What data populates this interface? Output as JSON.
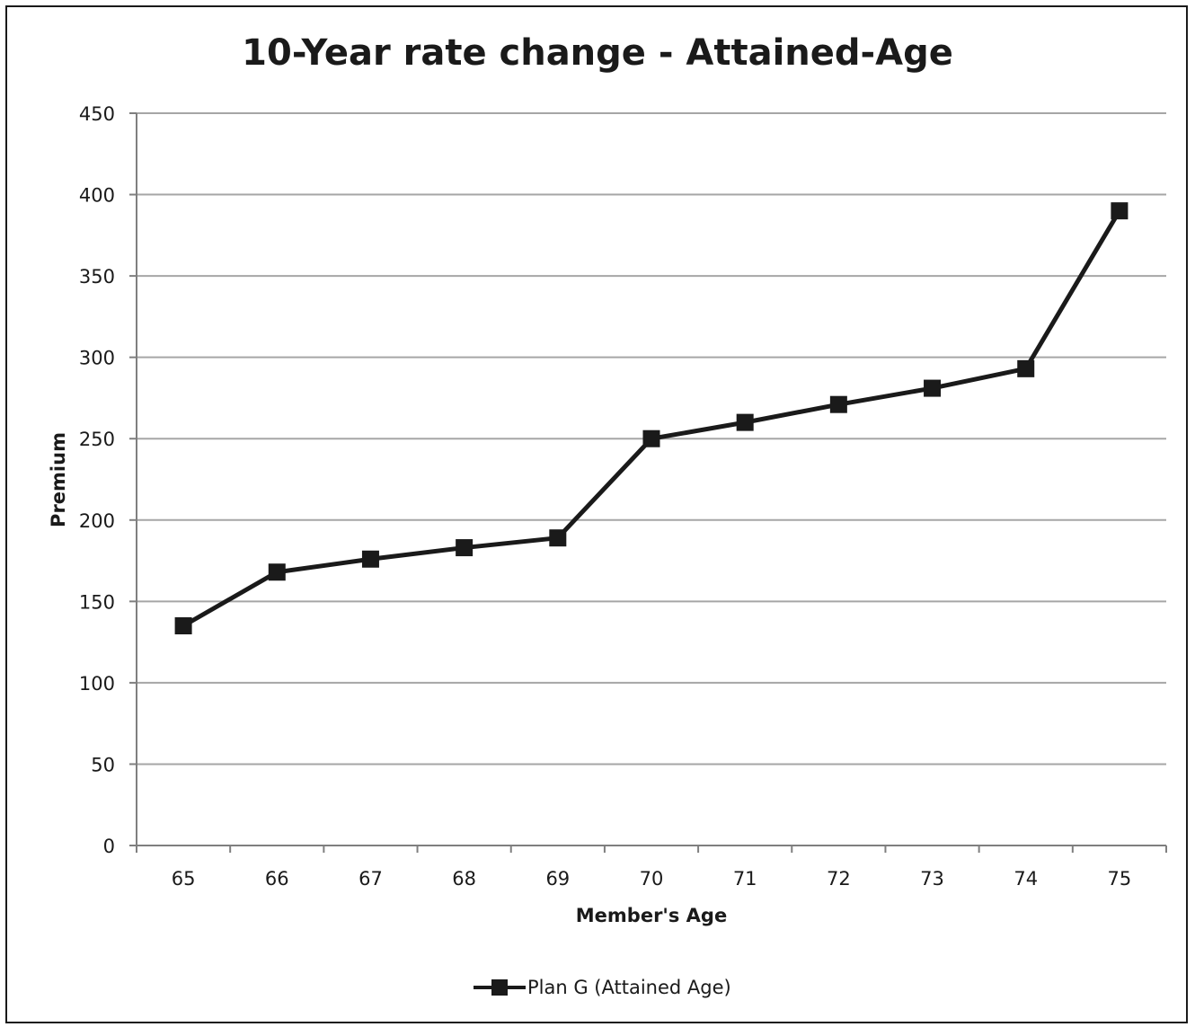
{
  "chart_data": {
    "type": "line",
    "title": "10-Year rate change - Attained-Age",
    "xlabel": "Member's Age",
    "ylabel": "Premium",
    "categories": [
      "65",
      "66",
      "67",
      "68",
      "69",
      "70",
      "71",
      "72",
      "73",
      "74",
      "75"
    ],
    "series": [
      {
        "name": "Plan G (Attained Age)",
        "values": [
          135,
          168,
          176,
          183,
          189,
          250,
          260,
          271,
          281,
          293,
          390
        ]
      }
    ],
    "ylim": [
      0,
      450
    ],
    "yticks": [
      "0",
      "50",
      "100",
      "150",
      "200",
      "250",
      "300",
      "350",
      "400",
      "450"
    ],
    "grid": true,
    "legend_position": "bottom",
    "colors": {
      "line": "#1a1a1a",
      "grid": "#a6a6a6",
      "axis": "#7f7f7f"
    }
  }
}
